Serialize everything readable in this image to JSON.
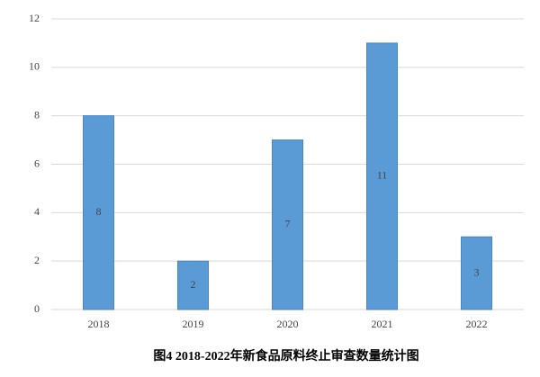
{
  "chart_data": {
    "type": "bar",
    "title": "图4 2018-2022年新食品原料终止审查数量统计图",
    "categories": [
      "2018",
      "2019",
      "2020",
      "2021",
      "2022"
    ],
    "values": [
      8,
      2,
      7,
      11,
      3
    ],
    "color": "#5b9bd5",
    "ylim": [
      0,
      12
    ],
    "yticks": [
      0,
      2,
      4,
      6,
      8,
      10,
      12
    ],
    "grid": true
  }
}
